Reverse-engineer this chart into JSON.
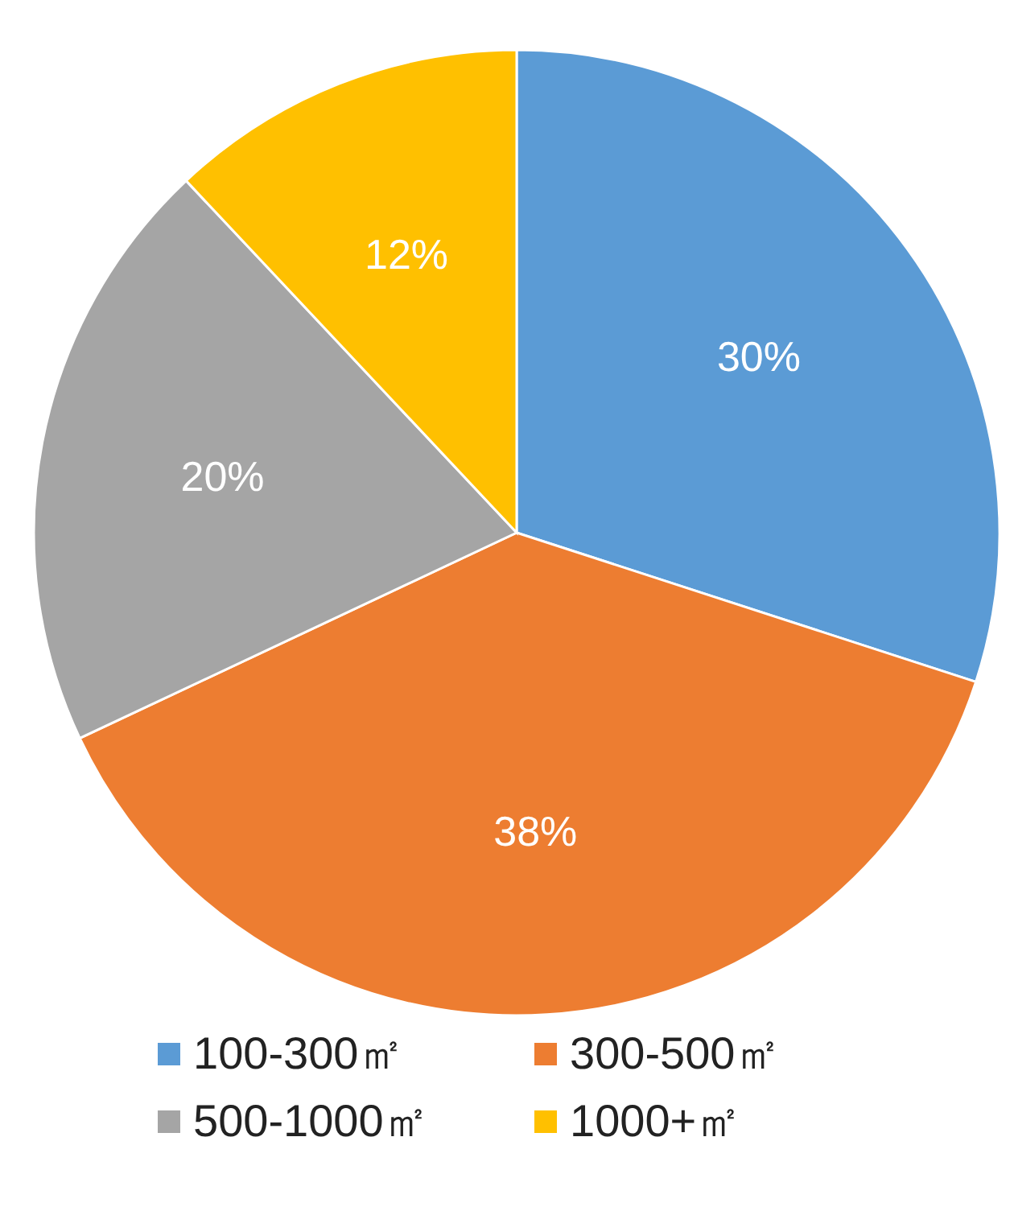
{
  "chart_data": {
    "type": "pie",
    "categories": [
      "100-300㎡",
      "300-500㎡",
      "500-1000㎡",
      "1000+㎡"
    ],
    "values": [
      30,
      38,
      20,
      12
    ],
    "colors": [
      "#5b9bd5",
      "#ed7d31",
      "#a5a5a5",
      "#ffc000"
    ],
    "value_labels": [
      "30%",
      "38%",
      "20%",
      "12%"
    ],
    "legend": "bottom"
  }
}
